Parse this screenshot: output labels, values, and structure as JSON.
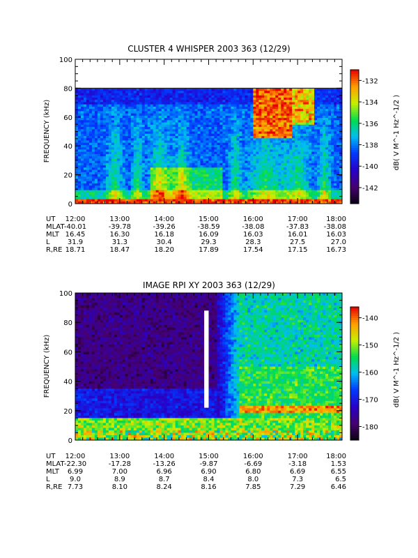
{
  "chart_data": [
    {
      "type": "heatmap",
      "title": "CLUSTER 4 WHISPER 2003 363 (12/29)",
      "ylabel": "FREQUENCY (kHz)",
      "ylim": [
        0,
        100
      ],
      "yticks": [
        "0",
        "20",
        "40",
        "60",
        "80",
        "100"
      ],
      "xlim": [
        "12:00",
        "18:00"
      ],
      "data_top_khz": 80,
      "colorbar": {
        "label": "dB( V M^-1 Hz^-1/2 )",
        "range": [
          -143.5,
          -131
        ],
        "ticks": [
          "-132",
          "-134",
          "-136",
          "-138",
          "-140",
          "-142"
        ],
        "tick_values": [
          -132,
          -134,
          -136,
          -138,
          -140,
          -142
        ]
      },
      "ephemeris": {
        "rows": [
          {
            "label": "UT",
            "values": [
              "12:00",
              "13:00",
              "14:00",
              "15:00",
              "16:00",
              "17:00",
              "18:00"
            ]
          },
          {
            "label": "MLAT",
            "values": [
              "-40.01",
              "-39.78",
              "-39.26",
              "-38.59",
              "-38.08",
              "-37.83",
              "-38.08"
            ]
          },
          {
            "label": "MLT",
            "values": [
              "16.45",
              "16.30",
              "16.18",
              "16.09",
              "16.03",
              "16.01",
              "16.03"
            ]
          },
          {
            "label": "L",
            "values": [
              "31.9",
              "31.3",
              "30.4",
              "29.3",
              "28.3",
              "27.5",
              "27.0"
            ]
          },
          {
            "label": "R,RE",
            "values": [
              "18.71",
              "18.47",
              "18.20",
              "17.89",
              "17.54",
              "17.15",
              "16.73"
            ]
          }
        ]
      }
    },
    {
      "type": "heatmap",
      "title": "IMAGE RPI XY 2003 363 (12/29)",
      "ylabel": "FREQUENCY (kHz)",
      "ylim": [
        0,
        100
      ],
      "yticks": [
        "0",
        "20",
        "40",
        "60",
        "80",
        "100"
      ],
      "xlim": [
        "12:00",
        "18:00"
      ],
      "data_gap": {
        "start": "14:54",
        "end": "15:00",
        "from_khz": 22,
        "to_khz": 88
      },
      "colorbar": {
        "label": "dB( V M^-1 Hz^-1/2 )",
        "range": [
          -185,
          -136
        ],
        "ticks": [
          "-140",
          "-150",
          "-160",
          "-170",
          "-180"
        ],
        "tick_values": [
          -140,
          -150,
          -160,
          -170,
          -180
        ]
      },
      "ephemeris": {
        "rows": [
          {
            "label": "UT",
            "values": [
              "12:00",
              "13:00",
              "14:00",
              "15:00",
              "16:00",
              "17:00",
              "18:00"
            ]
          },
          {
            "label": "MLAT",
            "values": [
              "-22.30",
              "-17.28",
              "-13.26",
              "-9.87",
              "-6.69",
              "-3.18",
              "1.53"
            ]
          },
          {
            "label": "MLT",
            "values": [
              "6.99",
              "7.00",
              "6.96",
              "6.90",
              "6.80",
              "6.69",
              "6.55"
            ]
          },
          {
            "label": "L",
            "values": [
              "9.0",
              "8.9",
              "8.7",
              "8.4",
              "8.0",
              "7.3",
              "6.5"
            ]
          },
          {
            "label": "R,RE",
            "values": [
              "7.73",
              "8.10",
              "8.24",
              "8.16",
              "7.85",
              "7.29",
              "6.46"
            ]
          }
        ]
      }
    }
  ]
}
